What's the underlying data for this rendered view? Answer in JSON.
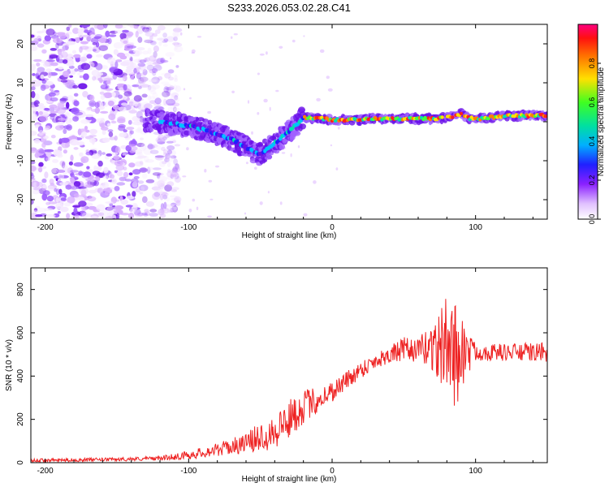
{
  "figure_title": "S233.2026.053.02.28.C41",
  "colors": {
    "snr_line": "#ee2222",
    "axis": "#000000",
    "colormap": [
      "#f5e8ff",
      "#d9b0ff",
      "#a060ff",
      "#6a10e8",
      "#2020ff",
      "#00c0ff",
      "#00e0b0",
      "#40ff40",
      "#ffe000",
      "#ff8000",
      "#ff2020",
      "#ff0080"
    ]
  },
  "chart_data": [
    {
      "type": "heatmap",
      "title": "",
      "xlabel": "Height of straight line (km)",
      "ylabel": "Frequency (Hz)",
      "xlim": [
        -210,
        150
      ],
      "ylim": [
        -25,
        25
      ],
      "xticks": [
        -200,
        -100,
        0,
        100
      ],
      "yticks": [
        -20,
        -10,
        0,
        10,
        20
      ],
      "colorbar": {
        "label": "Normalized spectral amplitude",
        "range": [
          0,
          1
        ],
        "ticks": [
          "0.0",
          "0.2",
          "0.4",
          "0.6",
          "0.8"
        ]
      },
      "ridge": {
        "description": "dominant frequency track versus height",
        "x": [
          -130,
          -100,
          -85,
          -70,
          -60,
          -50,
          -45,
          -40,
          -30,
          -20,
          -10,
          0,
          10,
          30,
          50,
          70,
          80,
          90,
          95,
          100,
          120,
          150
        ],
        "y": [
          0.5,
          -1,
          -2.5,
          -4.5,
          -6.5,
          -8.5,
          -7,
          -5.5,
          -2.5,
          1,
          1,
          0.5,
          0.5,
          0.7,
          0.8,
          0.8,
          1,
          2,
          1,
          0.7,
          1.5,
          1.6
        ]
      },
      "noise_region_x": [
        -210,
        -115
      ]
    },
    {
      "type": "line",
      "title": "",
      "xlabel": "Height of straight line (km)",
      "ylabel": "SNR (10 * v/v)",
      "xlim": [
        -210,
        150
      ],
      "ylim": [
        0,
        900
      ],
      "xticks": [
        -200,
        -100,
        0,
        100
      ],
      "yticks": [
        0,
        200,
        400,
        600,
        800
      ],
      "series": [
        {
          "name": "SNR",
          "color": "#ee2222",
          "envelope_x": [
            -210,
            -150,
            -120,
            -100,
            -80,
            -60,
            -50,
            -40,
            -30,
            -20,
            -10,
            0,
            10,
            20,
            30,
            40,
            50,
            60,
            70,
            75,
            80,
            85,
            88,
            92,
            100,
            120,
            150
          ],
          "envelope_mean": [
            10,
            15,
            20,
            35,
            60,
            90,
            120,
            150,
            200,
            260,
            290,
            330,
            380,
            430,
            470,
            500,
            520,
            520,
            540,
            520,
            560,
            500,
            520,
            510,
            510,
            510,
            510
          ],
          "envelope_spread": [
            8,
            8,
            10,
            20,
            30,
            45,
            70,
            90,
            90,
            80,
            60,
            50,
            45,
            40,
            40,
            40,
            60,
            50,
            120,
            180,
            220,
            240,
            260,
            150,
            40,
            40,
            45
          ]
        }
      ]
    }
  ]
}
